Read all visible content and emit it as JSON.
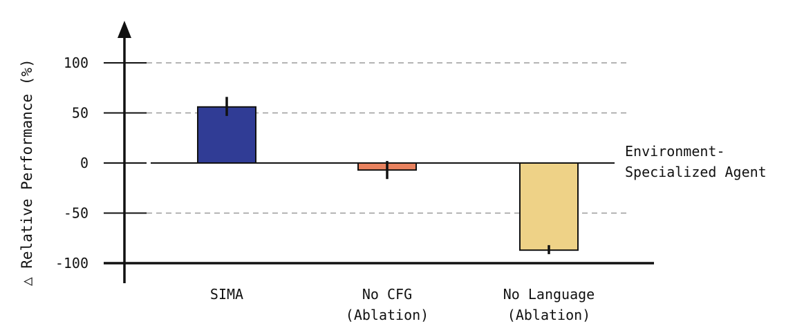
{
  "chart_data": {
    "type": "bar",
    "ylabel": "△ Relative Performance (%)",
    "yticks": [
      100,
      50,
      0,
      -50,
      -100
    ],
    "ylim": [
      -100,
      100
    ],
    "grid": true,
    "categories": [
      {
        "line1": "SIMA",
        "line2": ""
      },
      {
        "line1": "No CFG",
        "line2": "(Ablation)"
      },
      {
        "line1": "No Language",
        "line2": "(Ablation)"
      }
    ],
    "values": [
      56,
      -7,
      -87
    ],
    "error": [
      [
        47,
        66
      ],
      [
        -16,
        2
      ],
      [
        -91,
        -82
      ]
    ],
    "colors": [
      "#303c95",
      "#e8825f",
      "#eed287"
    ],
    "baseline_label": {
      "line1": "Environment-",
      "line2": "Specialized Agent"
    }
  }
}
